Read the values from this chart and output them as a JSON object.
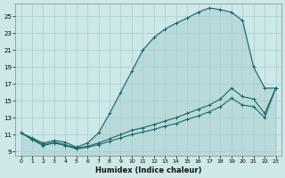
{
  "xlabel": "Humidex (Indice chaleur)",
  "bg_color": "#cce8e8",
  "grid_color": "#aacccc",
  "line_color": "#1a6666",
  "xlim": [
    -0.5,
    23.5
  ],
  "ylim": [
    8.5,
    26.5
  ],
  "xticks": [
    0,
    1,
    2,
    3,
    4,
    5,
    6,
    7,
    8,
    9,
    10,
    11,
    12,
    13,
    14,
    15,
    16,
    17,
    18,
    19,
    20,
    21,
    22,
    23
  ],
  "yticks": [
    9,
    11,
    13,
    15,
    17,
    19,
    21,
    23,
    25
  ],
  "curve1_x": [
    0,
    1,
    2,
    3,
    4,
    5,
    6,
    7,
    8,
    9,
    10,
    11,
    12,
    13,
    14,
    15,
    16,
    17,
    18,
    19,
    20,
    21,
    22,
    23
  ],
  "curve1_y": [
    11.2,
    10.6,
    10.0,
    10.3,
    10.1,
    9.5,
    10.0,
    11.2,
    13.5,
    16.0,
    18.5,
    21.0,
    22.5,
    23.5,
    24.2,
    24.8,
    25.5,
    26.0,
    25.8,
    25.5,
    24.5,
    19.0,
    16.5,
    16.5
  ],
  "curve2_x": [
    0,
    1,
    2,
    3,
    4,
    5,
    6,
    7,
    8,
    9,
    10,
    11,
    12,
    13,
    14,
    15,
    16,
    17,
    18,
    19,
    20,
    21,
    22,
    23
  ],
  "curve2_y": [
    11.2,
    10.5,
    9.8,
    10.1,
    9.8,
    9.4,
    9.6,
    10.0,
    10.5,
    11.0,
    11.5,
    11.8,
    12.2,
    12.6,
    13.0,
    13.5,
    14.0,
    14.5,
    15.2,
    16.5,
    15.5,
    15.2,
    13.5,
    16.5
  ],
  "curve3_x": [
    0,
    1,
    2,
    3,
    4,
    5,
    6,
    7,
    8,
    9,
    10,
    11,
    12,
    13,
    14,
    15,
    16,
    17,
    18,
    19,
    20,
    21,
    22,
    23
  ],
  "curve3_y": [
    11.2,
    10.4,
    9.7,
    10.0,
    9.7,
    9.3,
    9.5,
    9.8,
    10.2,
    10.6,
    11.0,
    11.3,
    11.6,
    12.0,
    12.3,
    12.8,
    13.2,
    13.7,
    14.3,
    15.3,
    14.5,
    14.3,
    13.0,
    16.5
  ]
}
